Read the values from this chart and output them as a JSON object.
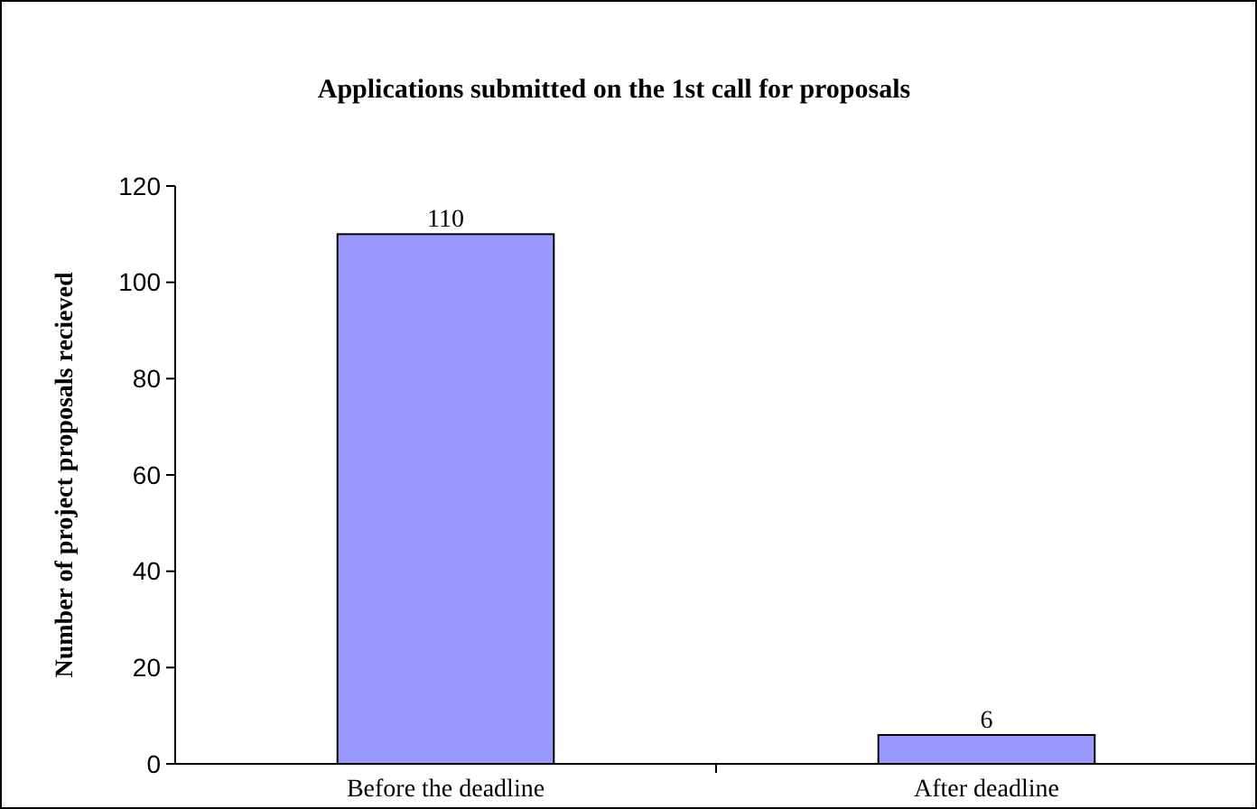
{
  "chart_data": {
    "type": "bar",
    "title": "Applications submitted on the 1st call for proposals",
    "ylabel": "Number of project proposals recieved",
    "categories": [
      "Before the deadline",
      "After deadline"
    ],
    "values": [
      110,
      6
    ],
    "color": "#9999ff",
    "data_labels": true,
    "ylim": [
      0,
      120
    ],
    "yticks": [
      0,
      20,
      40,
      60,
      80,
      100,
      120
    ]
  }
}
